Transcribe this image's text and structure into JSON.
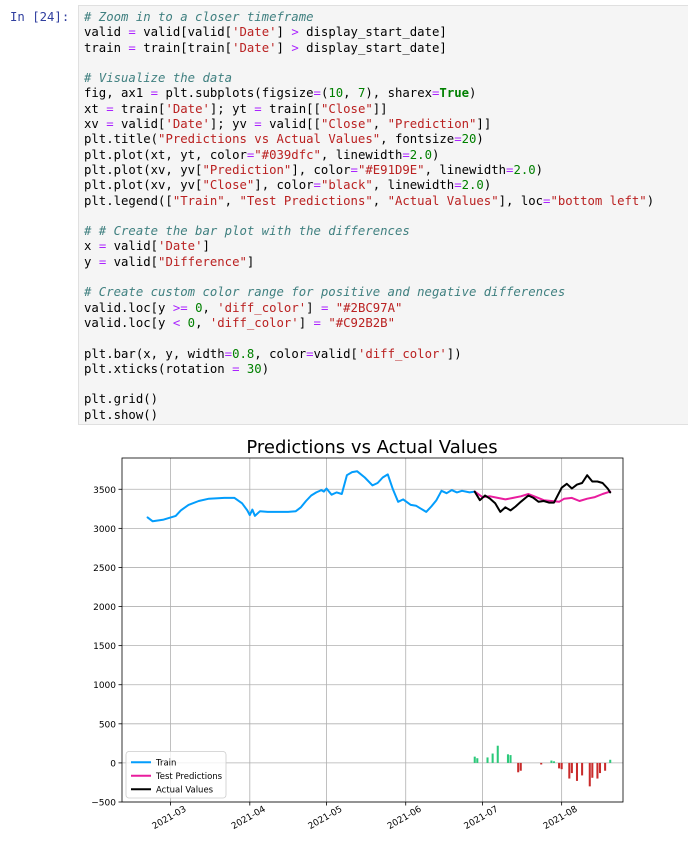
{
  "cell": {
    "prompt": "In [24]:",
    "code_lines": [
      [
        {
          "t": "# Zoom in to a closer timeframe",
          "c": "cm"
        }
      ],
      [
        {
          "t": "valid "
        },
        {
          "t": "=",
          "c": "o"
        },
        {
          "t": " valid[valid["
        },
        {
          "t": "'Date'",
          "c": "s"
        },
        {
          "t": "] "
        },
        {
          "t": ">",
          "c": "o"
        },
        {
          "t": " display_start_date]"
        }
      ],
      [
        {
          "t": "train "
        },
        {
          "t": "=",
          "c": "o"
        },
        {
          "t": " train[train["
        },
        {
          "t": "'Date'",
          "c": "s"
        },
        {
          "t": "] "
        },
        {
          "t": ">",
          "c": "o"
        },
        {
          "t": " display_start_date]"
        }
      ],
      [],
      [
        {
          "t": "# Visualize the data",
          "c": "cm"
        }
      ],
      [
        {
          "t": "fig, ax1 "
        },
        {
          "t": "=",
          "c": "o"
        },
        {
          "t": " plt.subplots(figsize"
        },
        {
          "t": "=",
          "c": "o"
        },
        {
          "t": "("
        },
        {
          "t": "10",
          "c": "n"
        },
        {
          "t": ", "
        },
        {
          "t": "7",
          "c": "n"
        },
        {
          "t": "), sharex"
        },
        {
          "t": "=",
          "c": "o"
        },
        {
          "t": "True",
          "c": "k"
        },
        {
          "t": ")"
        }
      ],
      [
        {
          "t": "xt "
        },
        {
          "t": "=",
          "c": "o"
        },
        {
          "t": " train["
        },
        {
          "t": "'Date'",
          "c": "s"
        },
        {
          "t": "]; yt "
        },
        {
          "t": "=",
          "c": "o"
        },
        {
          "t": " train[["
        },
        {
          "t": "\"Close\"",
          "c": "s"
        },
        {
          "t": "]]"
        }
      ],
      [
        {
          "t": "xv "
        },
        {
          "t": "=",
          "c": "o"
        },
        {
          "t": " valid["
        },
        {
          "t": "'Date'",
          "c": "s"
        },
        {
          "t": "]; yv "
        },
        {
          "t": "=",
          "c": "o"
        },
        {
          "t": " valid[["
        },
        {
          "t": "\"Close\"",
          "c": "s"
        },
        {
          "t": ", "
        },
        {
          "t": "\"Prediction\"",
          "c": "s"
        },
        {
          "t": "]]"
        }
      ],
      [
        {
          "t": "plt.title("
        },
        {
          "t": "\"Predictions vs Actual Values\"",
          "c": "s"
        },
        {
          "t": ", fontsize"
        },
        {
          "t": "=",
          "c": "o"
        },
        {
          "t": "20",
          "c": "n"
        },
        {
          "t": ")"
        }
      ],
      [
        {
          "t": "plt.plot(xt, yt, color"
        },
        {
          "t": "=",
          "c": "o"
        },
        {
          "t": "\"#039dfc\"",
          "c": "s"
        },
        {
          "t": ", linewidth"
        },
        {
          "t": "=",
          "c": "o"
        },
        {
          "t": "2.0",
          "c": "n"
        },
        {
          "t": ")"
        }
      ],
      [
        {
          "t": "plt.plot(xv, yv["
        },
        {
          "t": "\"Prediction\"",
          "c": "s"
        },
        {
          "t": "], color"
        },
        {
          "t": "=",
          "c": "o"
        },
        {
          "t": "\"#E91D9E\"",
          "c": "s"
        },
        {
          "t": ", linewidth"
        },
        {
          "t": "=",
          "c": "o"
        },
        {
          "t": "2.0",
          "c": "n"
        },
        {
          "t": ")"
        }
      ],
      [
        {
          "t": "plt.plot(xv, yv["
        },
        {
          "t": "\"Close\"",
          "c": "s"
        },
        {
          "t": "], color"
        },
        {
          "t": "=",
          "c": "o"
        },
        {
          "t": "\"black\"",
          "c": "s"
        },
        {
          "t": ", linewidth"
        },
        {
          "t": "=",
          "c": "o"
        },
        {
          "t": "2.0",
          "c": "n"
        },
        {
          "t": ")"
        }
      ],
      [
        {
          "t": "plt.legend(["
        },
        {
          "t": "\"Train\"",
          "c": "s"
        },
        {
          "t": ", "
        },
        {
          "t": "\"Test Predictions\"",
          "c": "s"
        },
        {
          "t": ", "
        },
        {
          "t": "\"Actual Values\"",
          "c": "s"
        },
        {
          "t": "], loc"
        },
        {
          "t": "=",
          "c": "o"
        },
        {
          "t": "\"bottom left\"",
          "c": "s"
        },
        {
          "t": ")"
        }
      ],
      [],
      [
        {
          "t": "# # Create the bar plot with the differences",
          "c": "cm"
        }
      ],
      [
        {
          "t": "x "
        },
        {
          "t": "=",
          "c": "o"
        },
        {
          "t": " valid["
        },
        {
          "t": "'Date'",
          "c": "s"
        },
        {
          "t": "]"
        }
      ],
      [
        {
          "t": "y "
        },
        {
          "t": "=",
          "c": "o"
        },
        {
          "t": " valid["
        },
        {
          "t": "\"Difference\"",
          "c": "s"
        },
        {
          "t": "]"
        }
      ],
      [],
      [
        {
          "t": "# Create custom color range for positive and negative differences",
          "c": "cm"
        }
      ],
      [
        {
          "t": "valid.loc[y "
        },
        {
          "t": ">=",
          "c": "o"
        },
        {
          "t": " "
        },
        {
          "t": "0",
          "c": "n"
        },
        {
          "t": ", "
        },
        {
          "t": "'diff_color'",
          "c": "s"
        },
        {
          "t": "] "
        },
        {
          "t": "=",
          "c": "o"
        },
        {
          "t": " "
        },
        {
          "t": "\"#2BC97A\"",
          "c": "s"
        }
      ],
      [
        {
          "t": "valid.loc[y "
        },
        {
          "t": "<",
          "c": "o"
        },
        {
          "t": " "
        },
        {
          "t": "0",
          "c": "n"
        },
        {
          "t": ", "
        },
        {
          "t": "'diff_color'",
          "c": "s"
        },
        {
          "t": "] "
        },
        {
          "t": "=",
          "c": "o"
        },
        {
          "t": " "
        },
        {
          "t": "\"#C92B2B\"",
          "c": "s"
        }
      ],
      [],
      [
        {
          "t": "plt.bar(x, y, width"
        },
        {
          "t": "=",
          "c": "o"
        },
        {
          "t": "0.8",
          "c": "n"
        },
        {
          "t": ", color"
        },
        {
          "t": "=",
          "c": "o"
        },
        {
          "t": "valid["
        },
        {
          "t": "'diff_color'",
          "c": "s"
        },
        {
          "t": "])"
        }
      ],
      [
        {
          "t": "plt.xticks(rotation "
        },
        {
          "t": "=",
          "c": "o"
        },
        {
          "t": " "
        },
        {
          "t": "30",
          "c": "n"
        },
        {
          "t": ")"
        }
      ],
      [],
      [
        {
          "t": "plt.grid()"
        }
      ],
      [
        {
          "t": "plt.show()"
        }
      ]
    ]
  },
  "chart_data": {
    "type": "line",
    "title": "Predictions vs Actual Values",
    "xlabel": "",
    "ylabel": "",
    "xlim": [
      "2021-02-10",
      "2021-08-25"
    ],
    "ylim": [
      -500,
      3900
    ],
    "x_ticks": [
      "2021-03-01",
      "2021-04-01",
      "2021-05-01",
      "2021-06-01",
      "2021-07-01",
      "2021-08-01"
    ],
    "x_tick_labels": [
      "2021-03",
      "2021-04",
      "2021-05",
      "2021-06",
      "2021-07",
      "2021-08"
    ],
    "y_ticks": [
      -500,
      0,
      500,
      1000,
      1500,
      2000,
      2500,
      3000,
      3500
    ],
    "y_tick_labels": [
      "−500",
      "0",
      "500",
      "1000",
      "1500",
      "2000",
      "2500",
      "3000",
      "3500"
    ],
    "grid": true,
    "legend_position": "bottom-left",
    "series": [
      {
        "name": "Train",
        "color": "#039dfc",
        "points": [
          [
            "2021-02-20",
            3140
          ],
          [
            "2021-02-22",
            3090
          ],
          [
            "2021-02-26",
            3110
          ],
          [
            "2021-03-03",
            3160
          ],
          [
            "2021-03-05",
            3230
          ],
          [
            "2021-03-08",
            3300
          ],
          [
            "2021-03-12",
            3350
          ],
          [
            "2021-03-16",
            3380
          ],
          [
            "2021-03-22",
            3390
          ],
          [
            "2021-03-26",
            3390
          ],
          [
            "2021-03-29",
            3320
          ],
          [
            "2021-03-31",
            3230
          ],
          [
            "2021-04-01",
            3170
          ],
          [
            "2021-04-02",
            3240
          ],
          [
            "2021-04-03",
            3160
          ],
          [
            "2021-04-05",
            3220
          ],
          [
            "2021-04-08",
            3210
          ],
          [
            "2021-04-12",
            3210
          ],
          [
            "2021-04-16",
            3210
          ],
          [
            "2021-04-19",
            3220
          ],
          [
            "2021-04-21",
            3270
          ],
          [
            "2021-04-23",
            3350
          ],
          [
            "2021-04-25",
            3420
          ],
          [
            "2021-04-27",
            3460
          ],
          [
            "2021-04-29",
            3490
          ],
          [
            "2021-04-30",
            3470
          ],
          [
            "2021-05-01",
            3510
          ],
          [
            "2021-05-03",
            3430
          ],
          [
            "2021-05-05",
            3460
          ],
          [
            "2021-05-07",
            3440
          ],
          [
            "2021-05-09",
            3680
          ],
          [
            "2021-05-11",
            3720
          ],
          [
            "2021-05-13",
            3730
          ],
          [
            "2021-05-16",
            3650
          ],
          [
            "2021-05-19",
            3550
          ],
          [
            "2021-05-21",
            3580
          ],
          [
            "2021-05-23",
            3650
          ],
          [
            "2021-05-25",
            3690
          ],
          [
            "2021-05-27",
            3500
          ],
          [
            "2021-05-29",
            3340
          ],
          [
            "2021-05-31",
            3370
          ],
          [
            "2021-06-03",
            3300
          ],
          [
            "2021-06-05",
            3290
          ],
          [
            "2021-06-07",
            3250
          ],
          [
            "2021-06-09",
            3210
          ],
          [
            "2021-06-11",
            3280
          ],
          [
            "2021-06-13",
            3360
          ],
          [
            "2021-06-15",
            3480
          ],
          [
            "2021-06-17",
            3450
          ],
          [
            "2021-06-19",
            3490
          ],
          [
            "2021-06-21",
            3460
          ],
          [
            "2021-06-23",
            3480
          ],
          [
            "2021-06-26",
            3460
          ],
          [
            "2021-06-28",
            3470
          ]
        ]
      },
      {
        "name": "Test Predictions",
        "color": "#E91D9E",
        "points": [
          [
            "2021-06-28",
            3470
          ],
          [
            "2021-07-01",
            3400
          ],
          [
            "2021-07-04",
            3410
          ],
          [
            "2021-07-07",
            3390
          ],
          [
            "2021-07-10",
            3370
          ],
          [
            "2021-07-13",
            3390
          ],
          [
            "2021-07-16",
            3410
          ],
          [
            "2021-07-19",
            3440
          ],
          [
            "2021-07-22",
            3400
          ],
          [
            "2021-07-25",
            3360
          ],
          [
            "2021-07-28",
            3350
          ],
          [
            "2021-07-31",
            3340
          ],
          [
            "2021-08-02",
            3380
          ],
          [
            "2021-08-05",
            3390
          ],
          [
            "2021-08-08",
            3350
          ],
          [
            "2021-08-11",
            3380
          ],
          [
            "2021-08-14",
            3400
          ],
          [
            "2021-08-17",
            3440
          ],
          [
            "2021-08-20",
            3470
          ]
        ]
      },
      {
        "name": "Actual Values",
        "color": "#000000",
        "points": [
          [
            "2021-06-28",
            3470
          ],
          [
            "2021-06-30",
            3360
          ],
          [
            "2021-07-02",
            3420
          ],
          [
            "2021-07-04",
            3380
          ],
          [
            "2021-07-06",
            3320
          ],
          [
            "2021-07-08",
            3210
          ],
          [
            "2021-07-10",
            3270
          ],
          [
            "2021-07-12",
            3230
          ],
          [
            "2021-07-14",
            3280
          ],
          [
            "2021-07-16",
            3340
          ],
          [
            "2021-07-19",
            3420
          ],
          [
            "2021-07-21",
            3390
          ],
          [
            "2021-07-23",
            3340
          ],
          [
            "2021-07-25",
            3350
          ],
          [
            "2021-07-27",
            3330
          ],
          [
            "2021-07-29",
            3330
          ],
          [
            "2021-08-01",
            3520
          ],
          [
            "2021-08-03",
            3570
          ],
          [
            "2021-08-05",
            3510
          ],
          [
            "2021-08-07",
            3560
          ],
          [
            "2021-08-09",
            3580
          ],
          [
            "2021-08-11",
            3680
          ],
          [
            "2021-08-13",
            3600
          ],
          [
            "2021-08-15",
            3600
          ],
          [
            "2021-08-17",
            3580
          ],
          [
            "2021-08-19",
            3510
          ],
          [
            "2021-08-20",
            3460
          ]
        ]
      }
    ],
    "bars": {
      "name": "Difference",
      "positive_color": "#2BC97A",
      "negative_color": "#C92B2B",
      "points": [
        [
          "2021-06-28",
          80
        ],
        [
          "2021-06-29",
          60
        ],
        [
          "2021-07-03",
          70
        ],
        [
          "2021-07-05",
          120
        ],
        [
          "2021-07-07",
          220
        ],
        [
          "2021-07-11",
          110
        ],
        [
          "2021-07-12",
          100
        ],
        [
          "2021-07-15",
          -120
        ],
        [
          "2021-07-16",
          -100
        ],
        [
          "2021-07-24",
          -20
        ],
        [
          "2021-07-28",
          30
        ],
        [
          "2021-07-29",
          20
        ],
        [
          "2021-07-31",
          -70
        ],
        [
          "2021-08-01",
          -80
        ],
        [
          "2021-08-04",
          -200
        ],
        [
          "2021-08-05",
          -130
        ],
        [
          "2021-08-07",
          -230
        ],
        [
          "2021-08-09",
          -160
        ],
        [
          "2021-08-12",
          -300
        ],
        [
          "2021-08-13",
          -190
        ],
        [
          "2021-08-15",
          -200
        ],
        [
          "2021-08-16",
          -130
        ],
        [
          "2021-08-18",
          -100
        ],
        [
          "2021-08-20",
          40
        ]
      ]
    }
  }
}
